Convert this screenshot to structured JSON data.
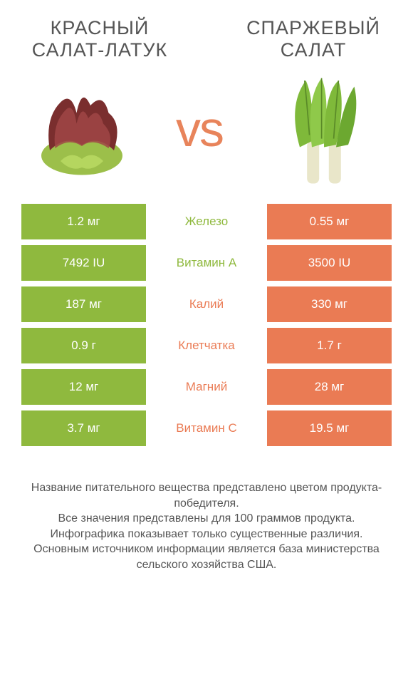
{
  "left_title": "КРАСНЫЙ САЛАТ-ЛАТУК",
  "right_title": "СПАРЖЕВЫЙ САЛАТ",
  "vs": "vs",
  "colors": {
    "left": "#8fb93e",
    "right": "#ea7b54",
    "vs": "#e8845b",
    "title": "#555555",
    "footer": "#555555",
    "background": "#ffffff"
  },
  "nutrients": [
    {
      "label": "Железо",
      "left": "1.2 мг",
      "right": "0.55 мг",
      "winner": "left"
    },
    {
      "label": "Витамин A",
      "left": "7492 IU",
      "right": "3500 IU",
      "winner": "left"
    },
    {
      "label": "Калий",
      "left": "187 мг",
      "right": "330 мг",
      "winner": "right"
    },
    {
      "label": "Клетчатка",
      "left": "0.9 г",
      "right": "1.7 г",
      "winner": "right"
    },
    {
      "label": "Магний",
      "left": "12 мг",
      "right": "28 мг",
      "winner": "right"
    },
    {
      "label": "Витамин C",
      "left": "3.7 мг",
      "right": "19.5 мг",
      "winner": "right"
    }
  ],
  "footer": [
    "Название питательного вещества представлено цветом продукта-победителя.",
    "Все значения представлены для 100 граммов продукта.",
    "Инфографика показывает только существенные различия.",
    "Основным источником информации является база министерства сельского хозяйства США."
  ],
  "label_font_size": 17,
  "value_font_size": 17
}
